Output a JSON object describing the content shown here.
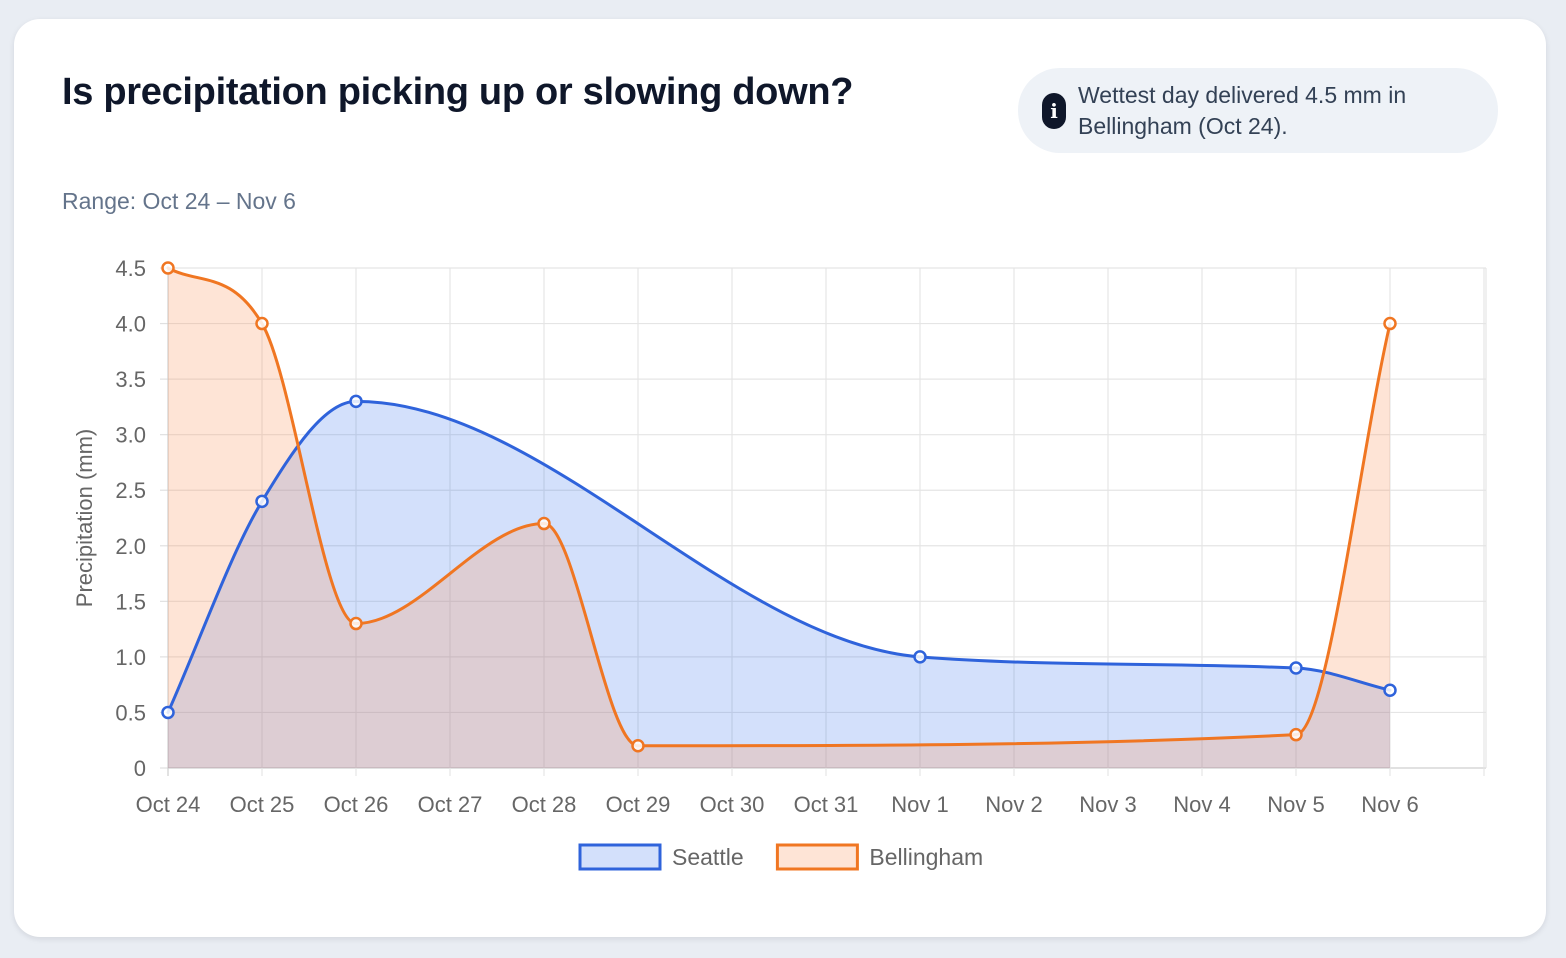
{
  "header": {
    "title": "Is precipitation picking up or slowing down?",
    "callout_icon": "info-icon",
    "callout_text": "Wettest day delivered 4.5 mm in Bellingham (Oct 24).",
    "range": "Range: Oct 24 – Nov 6"
  },
  "chart_data": {
    "type": "area",
    "title": "Is precipitation picking up or slowing down?",
    "xlabel": "",
    "ylabel": "Precipitation (mm)",
    "ylim": [
      0,
      4.5
    ],
    "y_ticks": [
      0,
      0.5,
      1.0,
      1.5,
      2.0,
      2.5,
      3.0,
      3.5,
      4.0,
      4.5
    ],
    "y_tick_labels": [
      "0",
      "0.5",
      "1.0",
      "1.5",
      "2.0",
      "2.5",
      "3.0",
      "3.5",
      "4.0",
      "4.5"
    ],
    "categories": [
      "Oct 24",
      "Oct 25",
      "Oct 26",
      "Oct 27",
      "Oct 28",
      "Oct 29",
      "Oct 30",
      "Oct 31",
      "Nov 1",
      "Nov 2",
      "Nov 3",
      "Nov 4",
      "Nov 5",
      "Nov 6"
    ],
    "grid": true,
    "legend_position": "bottom",
    "series": [
      {
        "name": "Seattle",
        "color": "#2f63db",
        "fill": "rgba(54, 112, 235, 0.22)",
        "values": [
          0.5,
          2.4,
          3.3,
          null,
          null,
          null,
          null,
          null,
          1.0,
          null,
          null,
          null,
          0.9,
          0.7
        ]
      },
      {
        "name": "Bellingham",
        "color": "#f07622",
        "fill": "rgba(251, 146, 90, 0.25)",
        "values": [
          4.5,
          4.0,
          1.3,
          null,
          2.2,
          0.2,
          null,
          null,
          null,
          null,
          null,
          null,
          0.3,
          4.0
        ]
      }
    ]
  }
}
